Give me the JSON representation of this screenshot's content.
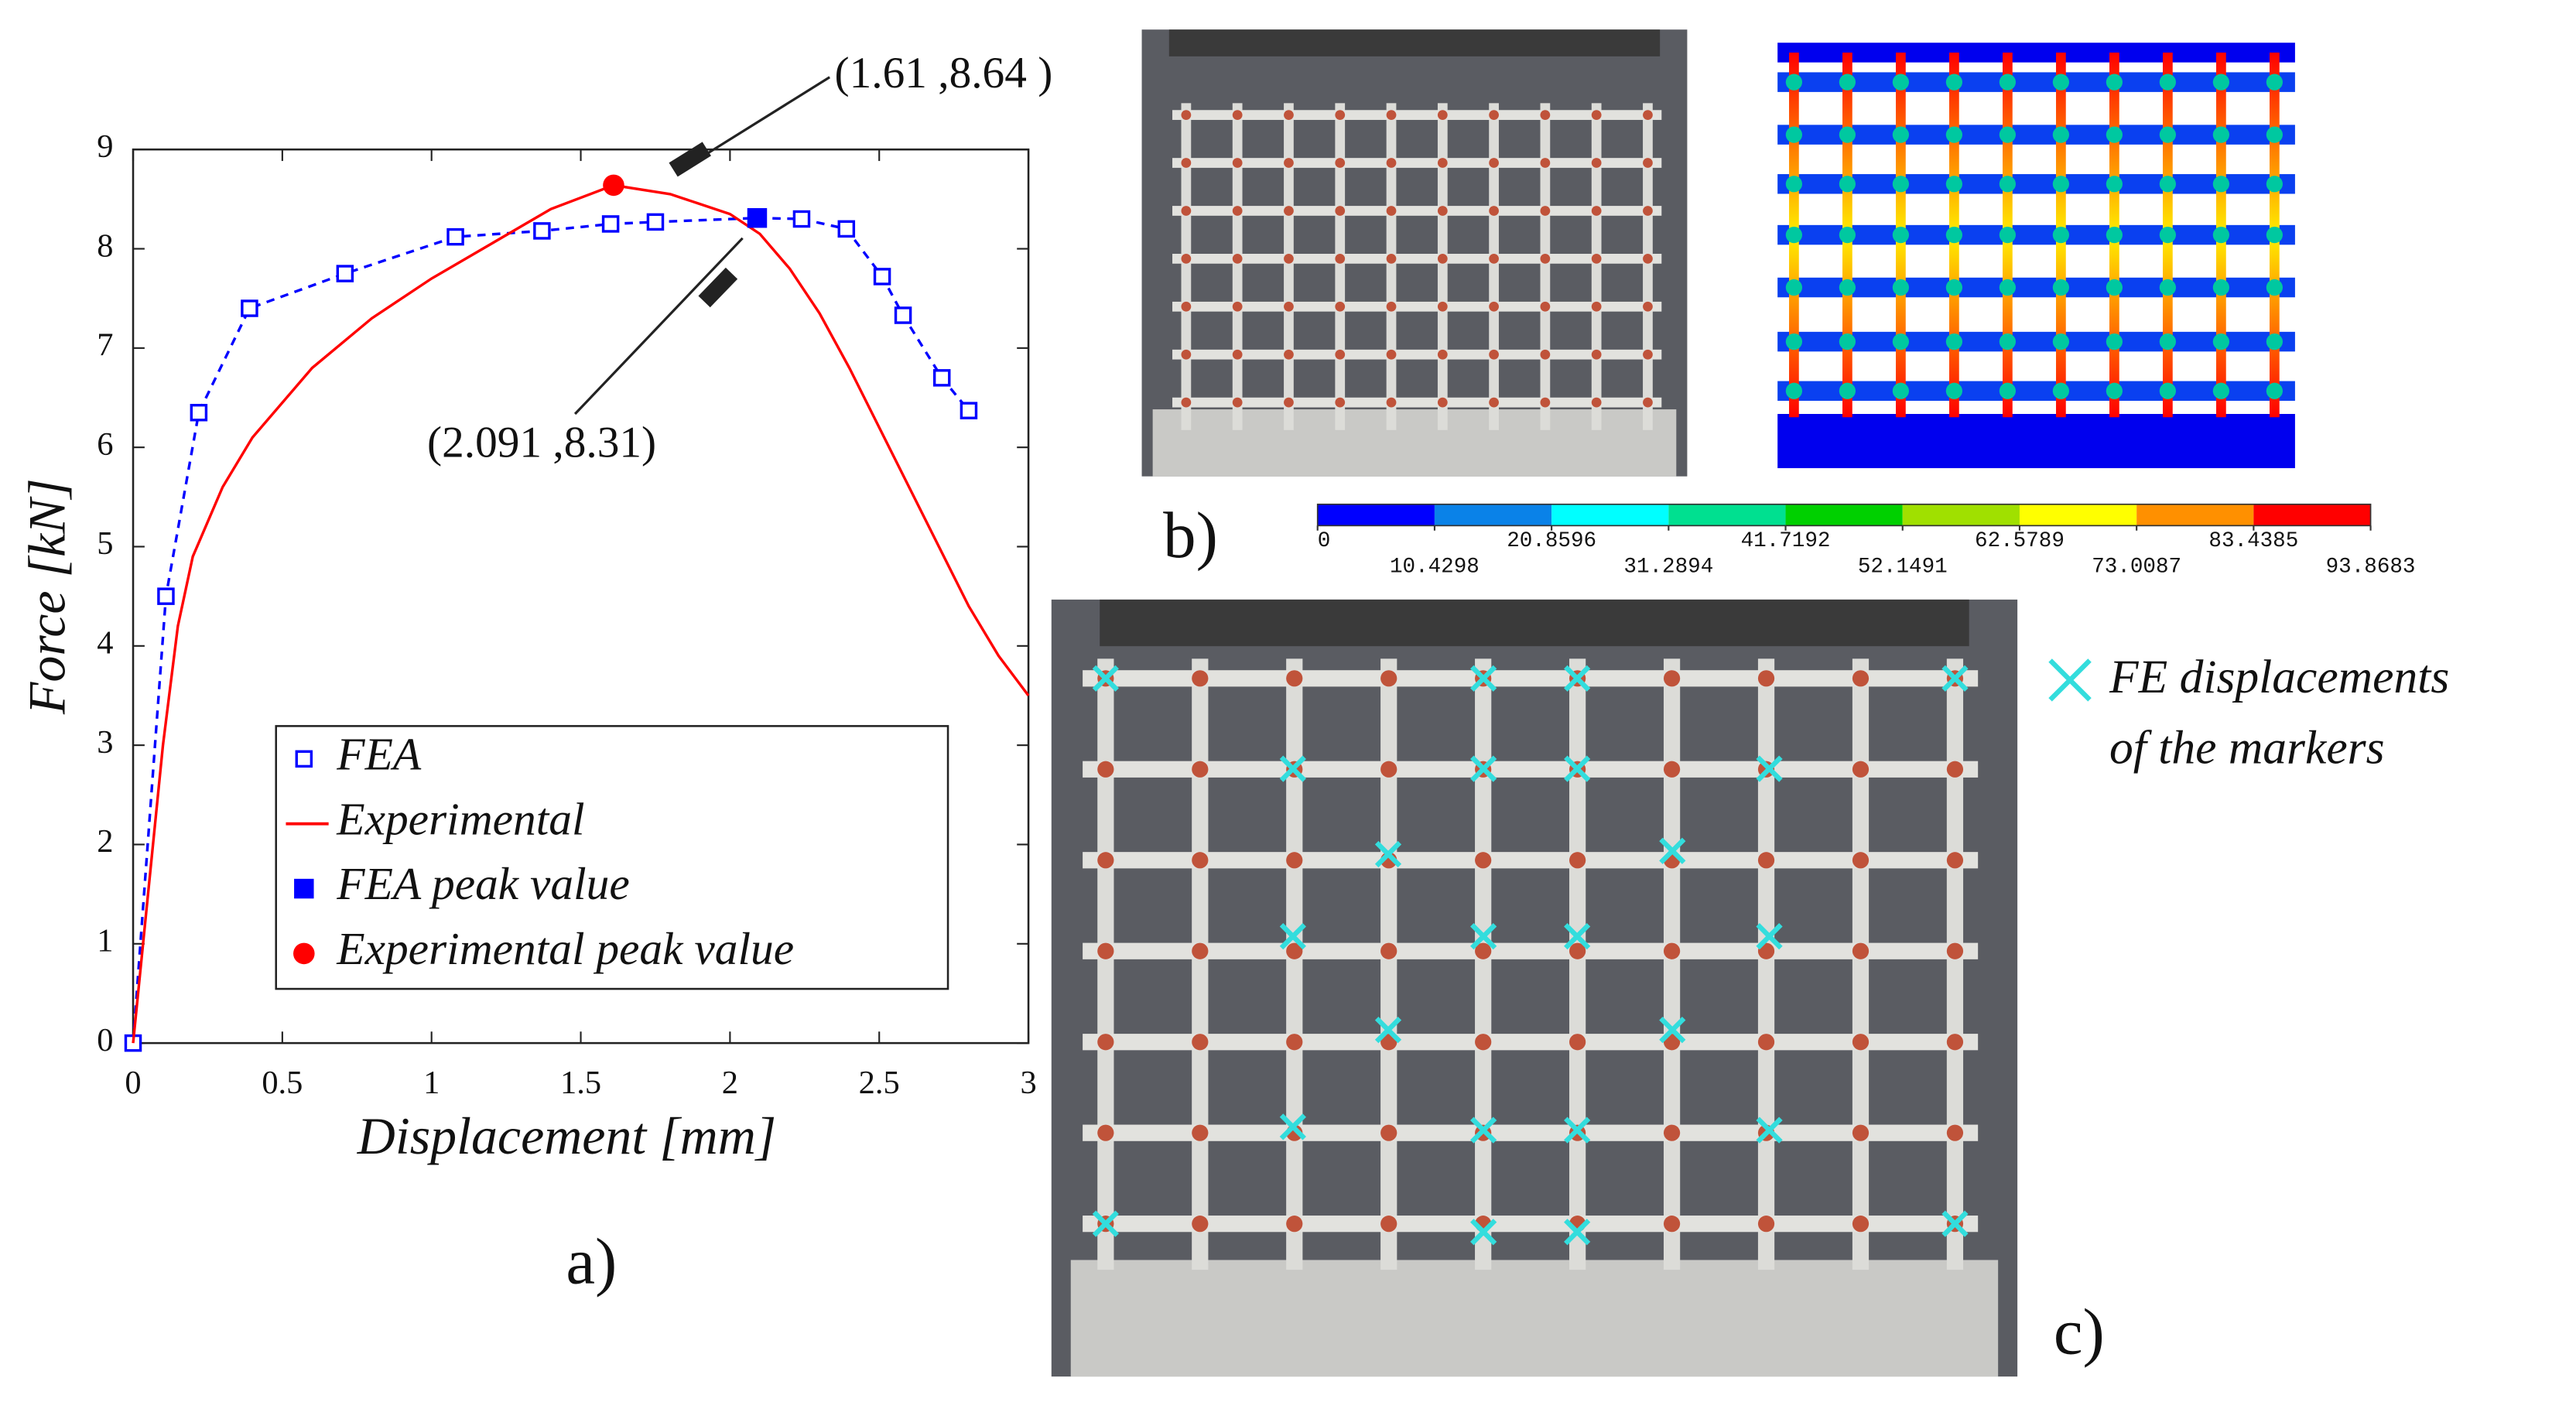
{
  "chart_data": {
    "type": "line",
    "x_label": "Displacement [mm]",
    "y_label": "Force [kN]",
    "xlim": [
      0,
      3
    ],
    "ylim": [
      0,
      9
    ],
    "xticks": [
      0,
      0.5,
      1,
      1.5,
      2,
      2.5,
      3
    ],
    "yticks": [
      0,
      1,
      2,
      3,
      4,
      5,
      6,
      7,
      8,
      9
    ],
    "series": [
      {
        "name": "FEA",
        "color": "#0000ff",
        "marker": "open-square",
        "dashed": true,
        "x": [
          0,
          0.11,
          0.22,
          0.39,
          0.71,
          1.08,
          1.37,
          1.6,
          1.75,
          2.09,
          2.24,
          2.39,
          2.51,
          2.58,
          2.71,
          2.8
        ],
        "values": [
          0,
          4.5,
          6.35,
          7.4,
          7.75,
          8.12,
          8.18,
          8.25,
          8.27,
          8.31,
          8.3,
          8.2,
          7.72,
          7.33,
          6.7,
          6.37
        ]
      },
      {
        "name": "Experimental",
        "color": "#ff0000",
        "marker": "none",
        "dashed": false,
        "x": [
          0,
          0.05,
          0.1,
          0.15,
          0.2,
          0.3,
          0.4,
          0.6,
          0.8,
          1.0,
          1.2,
          1.4,
          1.61,
          1.8,
          1.9,
          2.0,
          2.1,
          2.2,
          2.3,
          2.4,
          2.5,
          2.6,
          2.7,
          2.8,
          2.9,
          3.0
        ],
        "values": [
          0,
          1.5,
          3,
          4.2,
          4.9,
          5.6,
          6.1,
          6.8,
          7.3,
          7.7,
          8.05,
          8.4,
          8.64,
          8.55,
          8.45,
          8.35,
          8.15,
          7.8,
          7.35,
          6.8,
          6.2,
          5.6,
          5.0,
          4.4,
          3.9,
          3.5
        ]
      },
      {
        "name": "FEA peak value",
        "color": "#0000ff",
        "marker": "filled-square",
        "dashed": false,
        "x": [
          2.091
        ],
        "values": [
          8.31
        ]
      },
      {
        "name": "Experimental peak value",
        "color": "#ff0000",
        "marker": "filled-circle",
        "dashed": false,
        "x": [
          1.61
        ],
        "values": [
          8.64
        ]
      }
    ],
    "annotations": [
      "(1.61 ,8.64 )",
      "(2.091 ,8.31)"
    ]
  },
  "figure": {
    "panel_labels": [
      "a)",
      "b)",
      "c)"
    ],
    "colorbar": {
      "ticks": [
        0,
        10.4298,
        20.8596,
        31.2894,
        41.7192,
        52.1491,
        62.5789,
        73.0087,
        83.4385,
        93.8683
      ],
      "colors": [
        "#0000ff",
        "#0a82e8",
        "#00ffff",
        "#00e090",
        "#00d000",
        "#a0e000",
        "#ffff00",
        "#ff9000",
        "#ff0000"
      ]
    },
    "marker_legend": [
      "FE displacements",
      "of the markers"
    ]
  }
}
